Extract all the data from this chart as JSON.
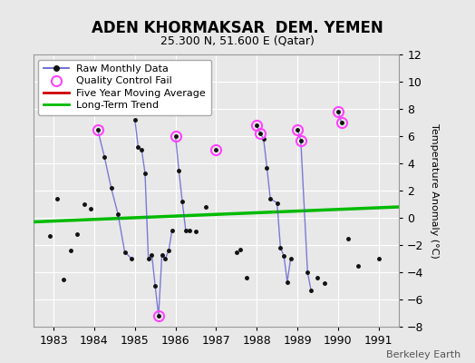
{
  "title": "ADEN KHORMAKSAR  DEM. YEMEN",
  "subtitle": "25.300 N, 51.600 E (Qatar)",
  "ylabel": "Temperature Anomaly (°C)",
  "credit": "Berkeley Earth",
  "xlim": [
    1982.5,
    1991.5
  ],
  "ylim": [
    -8,
    12
  ],
  "yticks": [
    -8,
    -6,
    -4,
    -2,
    0,
    2,
    4,
    6,
    8,
    10,
    12
  ],
  "xticks": [
    1983,
    1984,
    1985,
    1986,
    1987,
    1988,
    1989,
    1990,
    1991
  ],
  "bg_color": "#e8e8e8",
  "raw_data": [
    [
      1982.917,
      -1.3
    ],
    [
      1983.083,
      1.4
    ],
    [
      1983.25,
      -4.5
    ],
    [
      1983.417,
      -2.4
    ],
    [
      1983.583,
      -1.2
    ],
    [
      1983.75,
      1.0
    ],
    [
      1983.917,
      0.7
    ],
    [
      1984.083,
      6.5
    ],
    [
      1984.25,
      4.5
    ],
    [
      1984.417,
      2.2
    ],
    [
      1984.583,
      0.3
    ],
    [
      1984.75,
      -2.5
    ],
    [
      1984.917,
      -3.0
    ],
    [
      1985.0,
      7.2
    ],
    [
      1985.083,
      5.2
    ],
    [
      1985.167,
      5.0
    ],
    [
      1985.25,
      3.3
    ],
    [
      1985.333,
      -3.0
    ],
    [
      1985.417,
      -2.7
    ],
    [
      1985.5,
      -5.0
    ],
    [
      1985.583,
      -7.2
    ],
    [
      1985.667,
      -2.7
    ],
    [
      1985.75,
      -3.0
    ],
    [
      1985.833,
      -2.4
    ],
    [
      1985.917,
      -0.9
    ],
    [
      1986.0,
      6.0
    ],
    [
      1986.083,
      3.5
    ],
    [
      1986.167,
      1.2
    ],
    [
      1986.25,
      -0.9
    ],
    [
      1986.333,
      -0.9
    ],
    [
      1986.5,
      -1.0
    ],
    [
      1986.75,
      0.8
    ],
    [
      1987.0,
      5.0
    ],
    [
      1987.5,
      -2.5
    ],
    [
      1987.583,
      -2.3
    ],
    [
      1987.75,
      -4.4
    ],
    [
      1988.0,
      6.8
    ],
    [
      1988.083,
      6.2
    ],
    [
      1988.167,
      5.8
    ],
    [
      1988.25,
      3.7
    ],
    [
      1988.333,
      1.4
    ],
    [
      1988.5,
      1.1
    ],
    [
      1988.583,
      -2.2
    ],
    [
      1988.667,
      -2.8
    ],
    [
      1988.75,
      -4.7
    ],
    [
      1988.833,
      -3.0
    ],
    [
      1989.0,
      6.5
    ],
    [
      1989.083,
      5.7
    ],
    [
      1989.25,
      -4.0
    ],
    [
      1989.333,
      -5.3
    ],
    [
      1989.5,
      -4.4
    ],
    [
      1989.667,
      -4.8
    ],
    [
      1990.0,
      7.8
    ],
    [
      1990.083,
      7.0
    ],
    [
      1990.25,
      -1.5
    ],
    [
      1990.5,
      -3.5
    ],
    [
      1991.0,
      -3.0
    ]
  ],
  "connected_segments": [
    [
      [
        1984.083,
        6.5
      ],
      [
        1984.25,
        4.5
      ],
      [
        1984.417,
        2.2
      ],
      [
        1984.583,
        0.3
      ],
      [
        1984.75,
        -2.5
      ],
      [
        1984.917,
        -3.0
      ]
    ],
    [
      [
        1985.0,
        7.2
      ],
      [
        1985.083,
        5.2
      ],
      [
        1985.167,
        5.0
      ],
      [
        1985.25,
        3.3
      ],
      [
        1985.333,
        -3.0
      ],
      [
        1985.417,
        -2.7
      ],
      [
        1985.5,
        -5.0
      ],
      [
        1985.583,
        -7.2
      ],
      [
        1985.667,
        -2.7
      ],
      [
        1985.75,
        -3.0
      ],
      [
        1985.833,
        -2.4
      ],
      [
        1985.917,
        -0.9
      ]
    ],
    [
      [
        1986.0,
        6.0
      ],
      [
        1986.083,
        3.5
      ],
      [
        1986.167,
        1.2
      ],
      [
        1986.25,
        -0.9
      ],
      [
        1986.333,
        -0.9
      ]
    ],
    [
      [
        1988.0,
        6.8
      ],
      [
        1988.083,
        6.2
      ],
      [
        1988.167,
        5.8
      ],
      [
        1988.25,
        3.7
      ],
      [
        1988.333,
        1.4
      ],
      [
        1988.5,
        1.1
      ],
      [
        1988.583,
        -2.2
      ],
      [
        1988.667,
        -2.8
      ],
      [
        1988.75,
        -4.7
      ],
      [
        1988.833,
        -3.0
      ]
    ],
    [
      [
        1989.0,
        6.5
      ],
      [
        1989.083,
        5.7
      ],
      [
        1989.25,
        -4.0
      ],
      [
        1989.333,
        -5.3
      ]
    ],
    [
      [
        1990.0,
        7.8
      ],
      [
        1990.083,
        7.0
      ]
    ]
  ],
  "qc_fail_points": [
    [
      1984.083,
      6.5
    ],
    [
      1985.583,
      -7.2
    ],
    [
      1986.0,
      6.0
    ],
    [
      1987.0,
      5.0
    ],
    [
      1988.0,
      6.8
    ],
    [
      1988.083,
      6.2
    ],
    [
      1989.0,
      6.5
    ],
    [
      1989.083,
      5.7
    ],
    [
      1990.0,
      7.8
    ],
    [
      1990.083,
      7.0
    ]
  ],
  "trend_x": [
    1982.5,
    1991.5
  ],
  "trend_y": [
    -0.3,
    0.8
  ],
  "line_color": "#5555cc",
  "dot_color": "#111111",
  "qc_color": "#ff44ff",
  "trend_color": "#00bb00",
  "mavg_color": "#cc0000",
  "title_fontsize": 12,
  "subtitle_fontsize": 9,
  "tick_fontsize": 9,
  "ylabel_fontsize": 8,
  "legend_fontsize": 8,
  "credit_fontsize": 8
}
